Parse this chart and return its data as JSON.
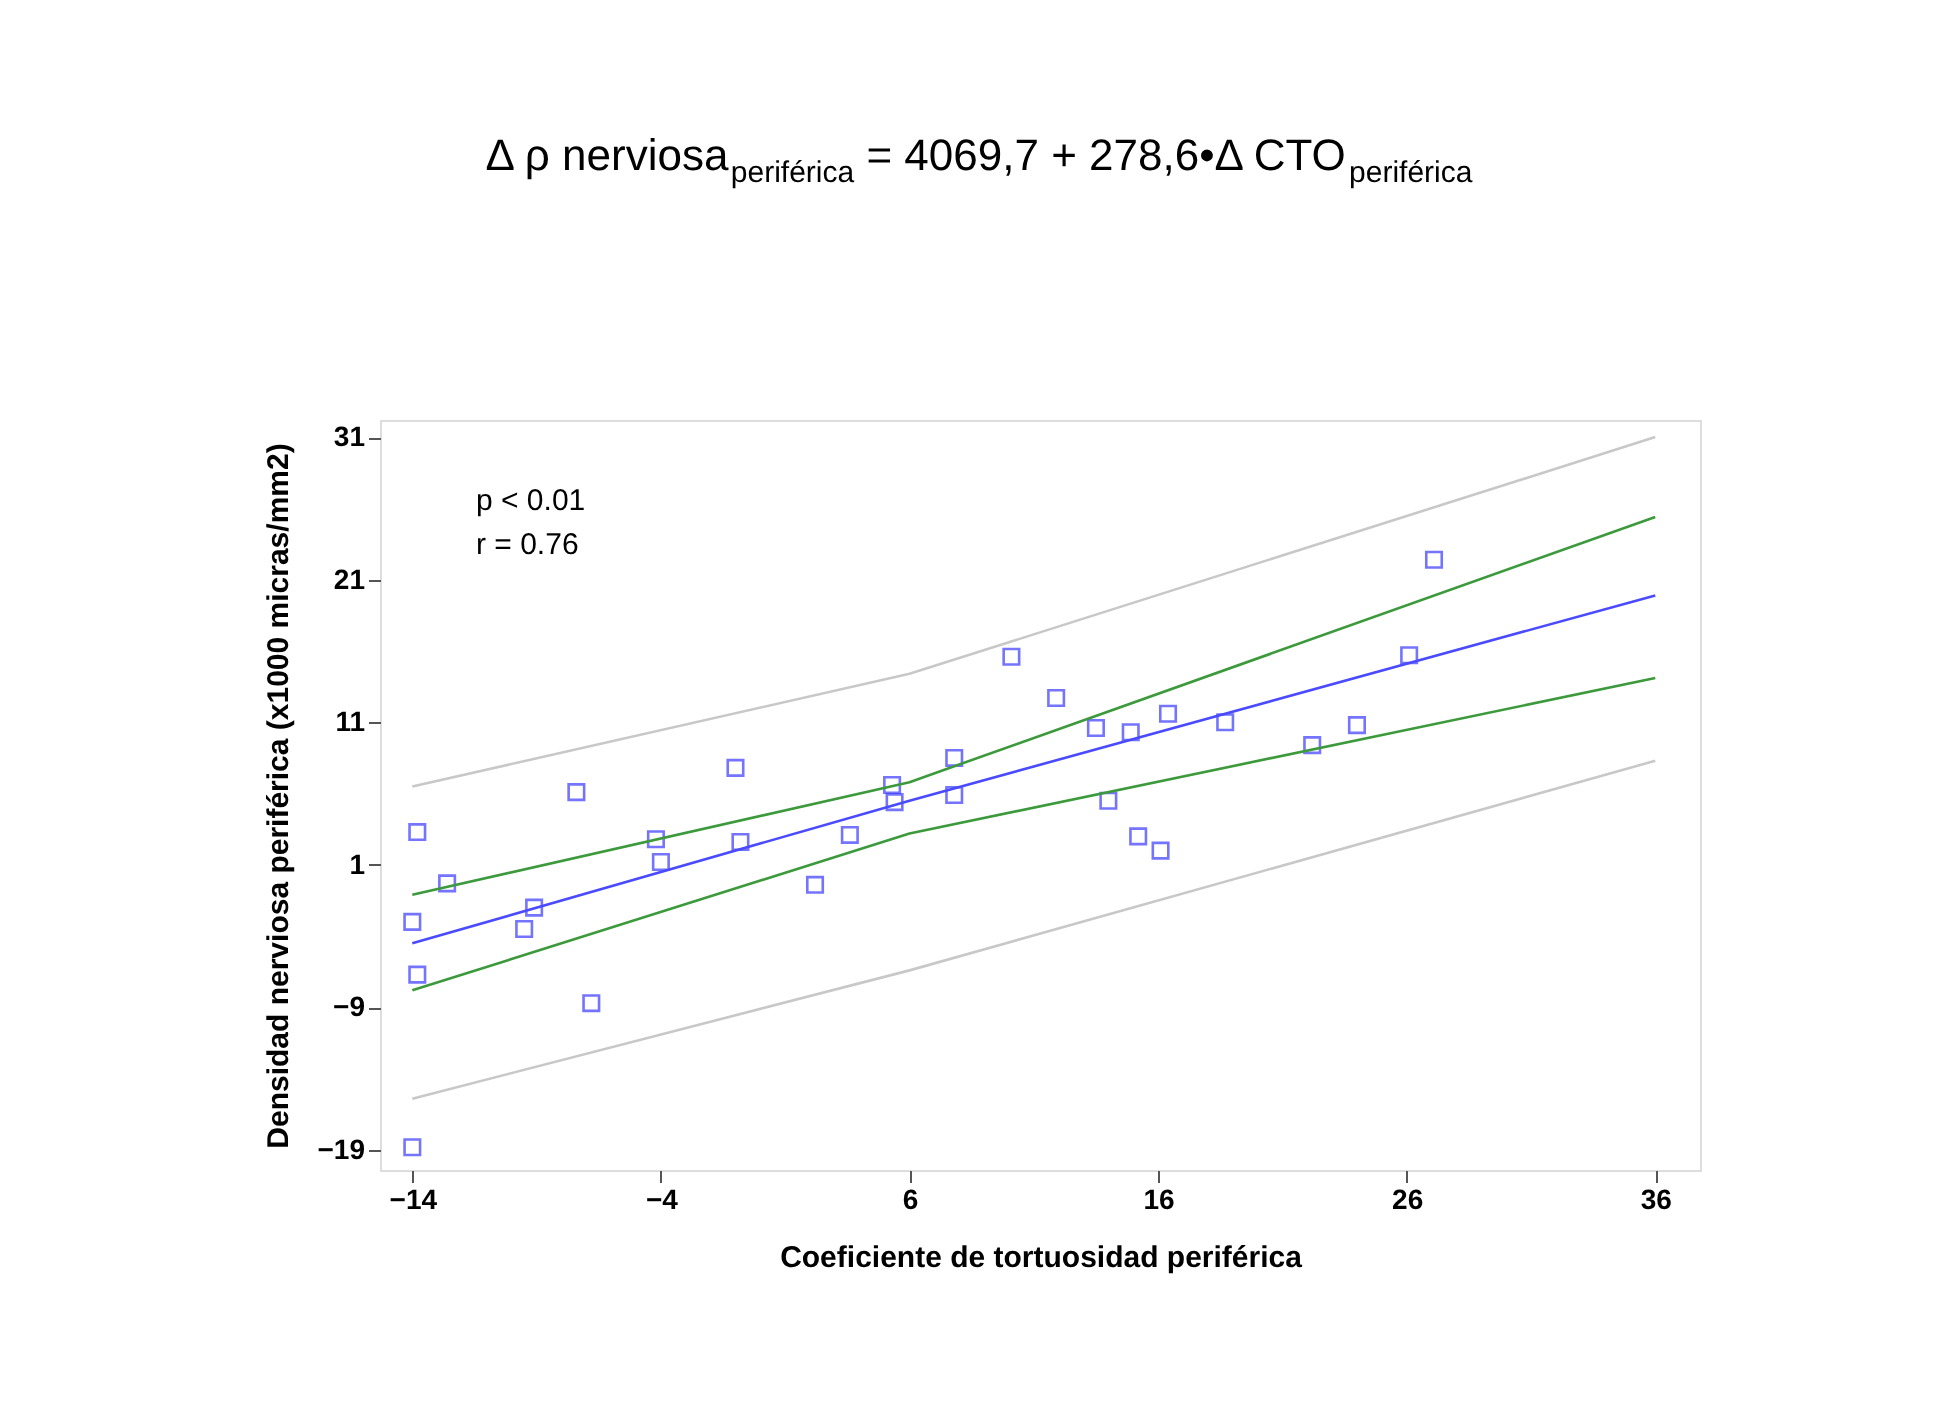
{
  "chart_data": {
    "type": "scatter",
    "title": "Δ ρ nerviosa$_{periférica}$ = 4069,7 + 278,6•Δ CTO$_{periférica}$",
    "xlabel": "Coeficiente de tortuosidad periférica",
    "ylabel": "Densidad nerviosa periférica (x1000 micras/mm2)",
    "annotations": [
      "p < 0.01",
      "r = 0.76"
    ],
    "xlim": [
      -15.3,
      37.8
    ],
    "xticks": [
      -14,
      -4,
      6,
      16,
      26,
      36
    ],
    "ylim": [
      -20.4,
      32.2
    ],
    "yticks": [
      -19,
      -9,
      1,
      11,
      21,
      31
    ],
    "grid": false,
    "series": [
      {
        "marker": "square",
        "color": "#3a3aff",
        "x": [
          -13.8,
          -12.6,
          -14,
          -13.8,
          -14,
          -9.5,
          -9.1,
          -7.4,
          -6.8,
          -4.2,
          -4.0,
          -1.0,
          -0.8,
          2.2,
          3.6,
          5.3,
          5.4,
          7.8,
          7.8,
          10.1,
          11.9,
          13.5,
          14.9,
          16.4,
          18.7,
          14.0,
          15.2,
          16.1,
          22.2,
          24.0,
          26.1,
          27.1
        ],
        "values": [
          3.3,
          -0.3,
          -3.0,
          -6.7,
          -18.8,
          -3.5,
          -2.0,
          6.1,
          -8.7,
          2.8,
          1.2,
          7.8,
          2.6,
          -0.4,
          3.1,
          6.6,
          5.4,
          8.5,
          5.9,
          15.6,
          12.7,
          10.6,
          10.3,
          11.6,
          11.0,
          5.5,
          3.0,
          2.0,
          9.4,
          10.8,
          15.7,
          22.4
        ]
      },
      {
        "type": "line",
        "color": "#4a4aff",
        "x": [
          -14,
          6,
          36
        ],
        "values": [
          -4.5,
          5.5,
          19.9
        ]
      },
      {
        "type": "line",
        "color": "#3c9a3c",
        "x": [
          -14,
          6,
          36
        ],
        "values": [
          -1.1,
          6.8,
          25.4
        ]
      },
      {
        "type": "line",
        "color": "#3c9a3c",
        "x": [
          -14,
          6,
          36
        ],
        "values": [
          -7.8,
          3.2,
          14.1
        ]
      },
      {
        "type": "line",
        "color": "#c8c8c8",
        "x": [
          -14,
          6,
          36
        ],
        "values": [
          6.5,
          14.4,
          31.0
        ]
      },
      {
        "type": "line",
        "color": "#c8c8c8",
        "x": [
          -14,
          6,
          36
        ],
        "values": [
          -15.4,
          -6.4,
          8.3
        ]
      }
    ]
  }
}
